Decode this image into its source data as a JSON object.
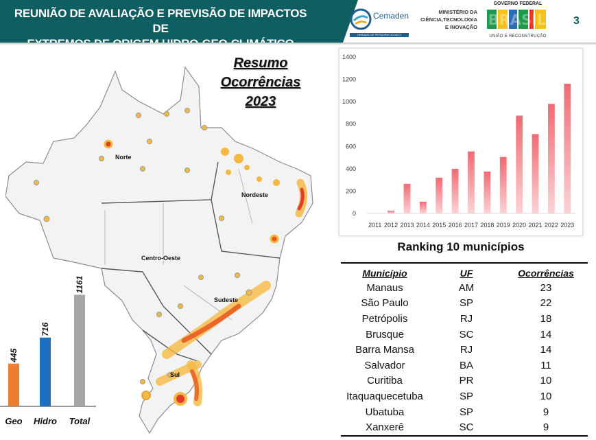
{
  "header": {
    "title_line1": "REUNIÃO DE AVALIAÇÃO E PREVISÃO DE IMPACTOS DE",
    "title_line2": "EXTREMOS DE ORIGEM HIDRO-GEO-CLIMÁTICO",
    "cemaden": "Cemaden",
    "cemaden_sub": "UNIDADE DE PESQUISA DO MCTI",
    "ministry_line1": "MINISTÉRIO DA",
    "ministry_line2": "CIÊNCIA,TECNOLOGIA",
    "ministry_line3": "E INOVAÇÃO",
    "gov_top": "GOVERNO FEDERAL",
    "gov_brand": "BRASIL",
    "gov_sub": "UNIÃO E RECONSTRUÇÃO",
    "slide_number": "3"
  },
  "summary": {
    "line1": "Resumo",
    "line2": "Ocorrências 2023"
  },
  "map": {
    "regions": [
      "Norte",
      "Nordeste",
      "Centro-Oeste",
      "Sudeste",
      "Sul"
    ]
  },
  "chart_data": [
    {
      "type": "bar",
      "categories": [
        "2011",
        "2012",
        "2013",
        "2014",
        "2015",
        "2016",
        "2017",
        "2018",
        "2019",
        "2020",
        "2021",
        "2022",
        "2023"
      ],
      "values": [
        0,
        25,
        265,
        105,
        320,
        400,
        555,
        375,
        505,
        875,
        710,
        980,
        1161
      ],
      "yticks": [
        "0",
        "200",
        "400",
        "600",
        "800",
        "1000",
        "1200",
        "1400"
      ],
      "ylim": [
        0,
        1400
      ],
      "grid": false,
      "color": "#ef6b73",
      "title": "",
      "xlabel": "",
      "ylabel": ""
    },
    {
      "type": "bar",
      "categories": [
        "Geo",
        "Hidro",
        "Total"
      ],
      "values": [
        445,
        716,
        1161
      ],
      "labels": [
        "445",
        "716",
        "1161"
      ],
      "colors": [
        "#ed7d31",
        "#1f6fbf",
        "#a6a6a6"
      ],
      "ylim": [
        0,
        1300
      ],
      "title": "",
      "xlabel": "",
      "ylabel": ""
    }
  ],
  "ranking": {
    "title": "Ranking 10 municípios",
    "headers": [
      "Município",
      "UF",
      "Ocorrências"
    ],
    "rows": [
      [
        "Manaus",
        "AM",
        "23"
      ],
      [
        "São Paulo",
        "SP",
        "22"
      ],
      [
        "Petrópolis",
        "RJ",
        "18"
      ],
      [
        "Brusque",
        "SC",
        "14"
      ],
      [
        "Barra Mansa",
        "RJ",
        "14"
      ],
      [
        "Salvador",
        "BA",
        "11"
      ],
      [
        "Curitiba",
        "PR",
        "10"
      ],
      [
        "Itaquaquecetuba",
        "SP",
        "10"
      ],
      [
        "Ubatuba",
        "SP",
        "9"
      ],
      [
        "Xanxerê",
        "SC",
        "9"
      ]
    ]
  }
}
